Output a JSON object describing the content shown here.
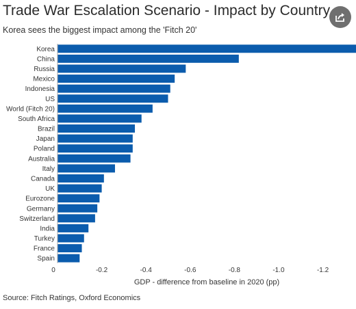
{
  "header": {
    "title": "Trade War Escalation Scenario - Impact by Country",
    "subtitle": "Korea sees the biggest impact among the 'Fitch 20'"
  },
  "footer": {
    "source": "Source: Fitch Ratings, Oxford Economics"
  },
  "share": {
    "icon": "share-icon"
  },
  "colors": {
    "bar": "#0b5cad",
    "axis": "#aaaaaa"
  },
  "chart_data": {
    "type": "bar",
    "orientation": "horizontal",
    "categories": [
      "Korea",
      "China",
      "Russia",
      "Mexico",
      "Indonesia",
      "US",
      "World (Fitch 20)",
      "South Africa",
      "Brazil",
      "Japan",
      "Poland",
      "Australia",
      "Italy",
      "Canada",
      "UK",
      "Eurozone",
      "Germany",
      "Switzerland",
      "India",
      "Turkey",
      "France",
      "Spain"
    ],
    "values": [
      -1.35,
      -0.82,
      -0.58,
      -0.53,
      -0.51,
      -0.5,
      -0.43,
      -0.38,
      -0.35,
      -0.34,
      -0.34,
      -0.33,
      -0.26,
      -0.21,
      -0.2,
      -0.19,
      -0.18,
      -0.17,
      -0.14,
      -0.12,
      -0.11,
      -0.1
    ],
    "xlabel": "GDP - difference from baseline in 2020 (pp)",
    "xlim": [
      0,
      -1.35
    ],
    "xticks": [
      0,
      -0.2,
      -0.4,
      -0.6,
      -0.8,
      -1.0,
      -1.2
    ],
    "xtick_labels": [
      "0",
      "-0.2",
      "-0.4",
      "-0.6",
      "-0.8",
      "-1.0",
      "-1.2"
    ],
    "grid": false,
    "legend": "none"
  }
}
